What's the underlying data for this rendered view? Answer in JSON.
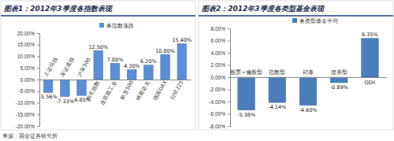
{
  "chart_data": [
    {
      "type": "bar",
      "title": "图表1：2012年3季度各指数表现",
      "categories": [
        "上证综指",
        "深证成指",
        "沪深300",
        "恒生指数",
        "道琼斯工业",
        "标普500",
        "纳斯达克",
        "德国DAX",
        "日经225"
      ],
      "series": [
        {
          "name": "各指数涨跌",
          "color": "#5b8ed6",
          "values": [
            -5.56,
            -7.33,
            -6.85,
            12.5,
            7.0,
            4.3,
            6.2,
            10.8,
            15.4
          ],
          "value_labels": [
            "-5.56%",
            "-7.33%",
            "-6.85%",
            "12.50%",
            "7.00%",
            "4.30%",
            "6.20%",
            "10.80%",
            "15.40%"
          ]
        }
      ],
      "ylim": [
        -20,
        20
      ],
      "yticks": [
        {
          "value": -20,
          "label": "-20.00%"
        },
        {
          "value": -15,
          "label": "-15.00%"
        },
        {
          "value": -10,
          "label": "-10.00%"
        },
        {
          "value": -5,
          "label": "-5.00%"
        },
        {
          "value": 0,
          "label": "0.00%"
        },
        {
          "value": 5,
          "label": "5.00%"
        },
        {
          "value": 10,
          "label": "10.00%"
        },
        {
          "value": 15,
          "label": "15.00%"
        },
        {
          "value": 20,
          "label": "20.00%"
        }
      ],
      "legend": "top",
      "data_labels": true,
      "grid": false,
      "source": "来源：国金证券研究所"
    },
    {
      "type": "bar",
      "title": "图表2：2012年3季度各类型基金表现",
      "categories": [
        "股票+偏股型",
        "指数型",
        "封基",
        "债券型",
        "QDII"
      ],
      "series": [
        {
          "name": "各类型基金平均",
          "color": "#4a7ebb",
          "values": [
            -5.38,
            -4.14,
            -4.6,
            -0.89,
            6.35
          ],
          "value_labels": [
            "-5.38%",
            "-4.14%",
            "-4.60%",
            "-0.89%",
            "6.35%"
          ]
        }
      ],
      "ylim": [
        -8,
        8
      ],
      "yticks": [
        {
          "value": -8,
          "label": "-8.00%"
        },
        {
          "value": -6,
          "label": "-6.00%"
        },
        {
          "value": -4,
          "label": "-4.00%"
        },
        {
          "value": -2,
          "label": "-2.00%"
        },
        {
          "value": 0,
          "label": "0.00%"
        },
        {
          "value": 2,
          "label": "2.00%"
        },
        {
          "value": 4,
          "label": "4.00%"
        },
        {
          "value": 6,
          "label": "6.00%"
        },
        {
          "value": 8,
          "label": "8.00%"
        }
      ],
      "legend": "top",
      "data_labels": true,
      "grid": false
    }
  ]
}
